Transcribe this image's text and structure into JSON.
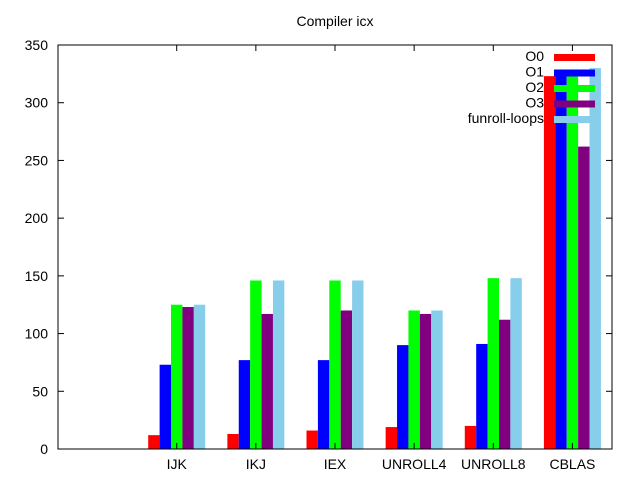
{
  "chart_data": {
    "type": "bar",
    "title": "Compiler icx",
    "xlabel": "",
    "ylabel": "",
    "ylim": [
      0,
      350
    ],
    "yticks": [
      0,
      50,
      100,
      150,
      200,
      250,
      300,
      350
    ],
    "categories": [
      "",
      "IJK",
      "IKJ",
      "IEX",
      "UNROLL4",
      "UNROLL8",
      "CBLAS"
    ],
    "series": [
      {
        "name": "O0",
        "color": "#ff0000",
        "values": [
          null,
          12,
          13,
          16,
          19,
          20,
          323
        ]
      },
      {
        "name": "O1",
        "color": "#0000ff",
        "values": [
          null,
          73,
          77,
          77,
          90,
          91,
          323
        ]
      },
      {
        "name": "O2",
        "color": "#00ff00",
        "values": [
          null,
          125,
          146,
          146,
          120,
          148,
          323
        ]
      },
      {
        "name": "O3",
        "color": "#800080",
        "values": [
          null,
          123,
          117,
          120,
          117,
          112,
          262
        ]
      },
      {
        "name": "funroll-loops",
        "color": "#87ceeb",
        "values": [
          null,
          125,
          146,
          146,
          120,
          148,
          330
        ]
      }
    ],
    "grid": false,
    "legend": "top-right"
  }
}
